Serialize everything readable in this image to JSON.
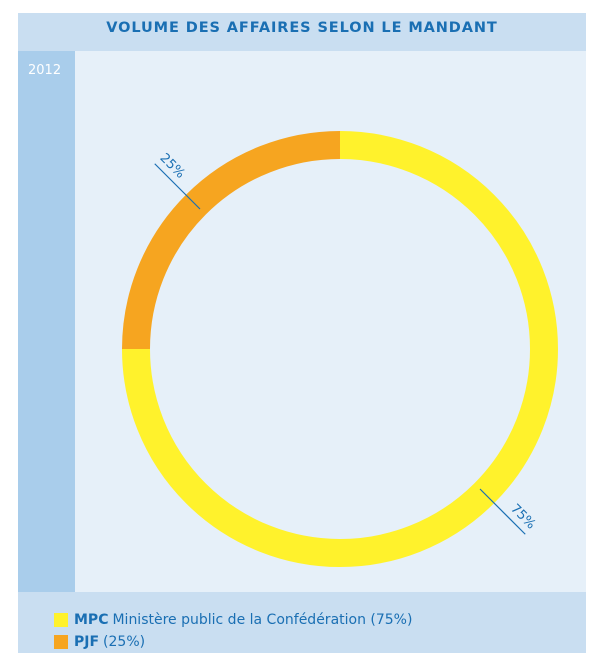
{
  "chart_data": {
    "type": "pie",
    "title": "VOLUME DES AFFAIRES SELON LE MANDANT",
    "year": "2012",
    "slices": [
      {
        "key": "MPC",
        "label": "Ministère public de la Confédération (75%)",
        "value": 75,
        "data_label": "75%",
        "color": "#fff22c"
      },
      {
        "key": "PJF",
        "label": "(25%)",
        "value": 25,
        "data_label": "25%",
        "color": "#f6a520"
      }
    ],
    "legend_position": "bottom-left"
  }
}
